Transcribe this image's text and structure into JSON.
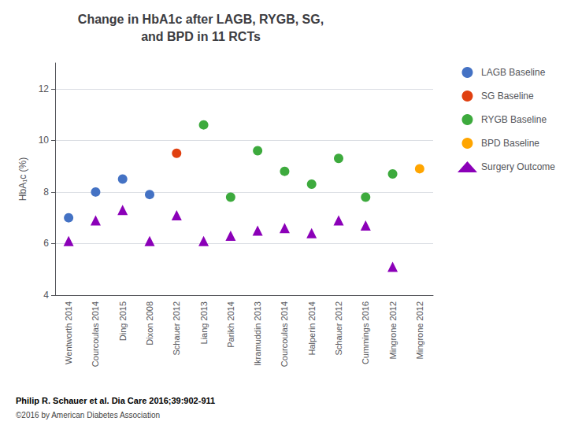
{
  "chart_data": {
    "type": "scatter",
    "title": "Change in HbA1c after LAGB, RYGB, SG,\nand BPD in 11 RCTs",
    "y_label": "HbA₁c (%)",
    "categories": [
      "Wentworth 2014",
      "Courcoulas 2014",
      "Ding 2015",
      "Dixon 2008",
      "Schauer 2012",
      "Liang 2013",
      "Parikh 2014",
      "Ikramuddin 2013",
      "Courcoulas 2014",
      "Halperin 2014",
      "Schauer 2012",
      "Cummings 2016",
      "Mingrone 2012",
      "Mingrone 2012"
    ],
    "series": [
      {
        "name": "LAGB Baseline",
        "color": "#4472c4",
        "marker": "circle",
        "values": [
          7.0,
          8.0,
          8.5,
          7.9,
          null,
          null,
          null,
          null,
          null,
          null,
          null,
          null,
          null,
          null
        ]
      },
      {
        "name": "SG Baseline",
        "color": "#e04010",
        "marker": "circle",
        "values": [
          null,
          null,
          null,
          null,
          9.5,
          null,
          null,
          null,
          null,
          null,
          null,
          null,
          null,
          null
        ]
      },
      {
        "name": "RYGB Baseline",
        "color": "#3daa3d",
        "marker": "circle",
        "values": [
          null,
          null,
          null,
          null,
          null,
          10.6,
          7.8,
          9.6,
          8.8,
          8.3,
          9.3,
          7.8,
          8.7,
          null
        ]
      },
      {
        "name": "BPD Baseline",
        "color": "#ffa500",
        "marker": "circle",
        "values": [
          null,
          null,
          null,
          null,
          null,
          null,
          null,
          null,
          null,
          null,
          null,
          null,
          null,
          8.9
        ]
      },
      {
        "name": "Surgery Outcome",
        "color": "#8b00b8",
        "marker": "triangle",
        "values": [
          6.1,
          6.9,
          7.3,
          6.1,
          7.1,
          6.1,
          6.3,
          6.5,
          6.6,
          6.4,
          6.9,
          6.7,
          5.1,
          null
        ]
      }
    ],
    "ylim": [
      4,
      13
    ],
    "yticks": [
      4,
      6,
      8,
      10,
      12
    ],
    "grid": true,
    "legend": "upper right",
    "annotations": [
      "Philip R. Schauer et al. Dia Care 2016;39:902-911",
      "©2016 by American Diabetes Association"
    ]
  }
}
